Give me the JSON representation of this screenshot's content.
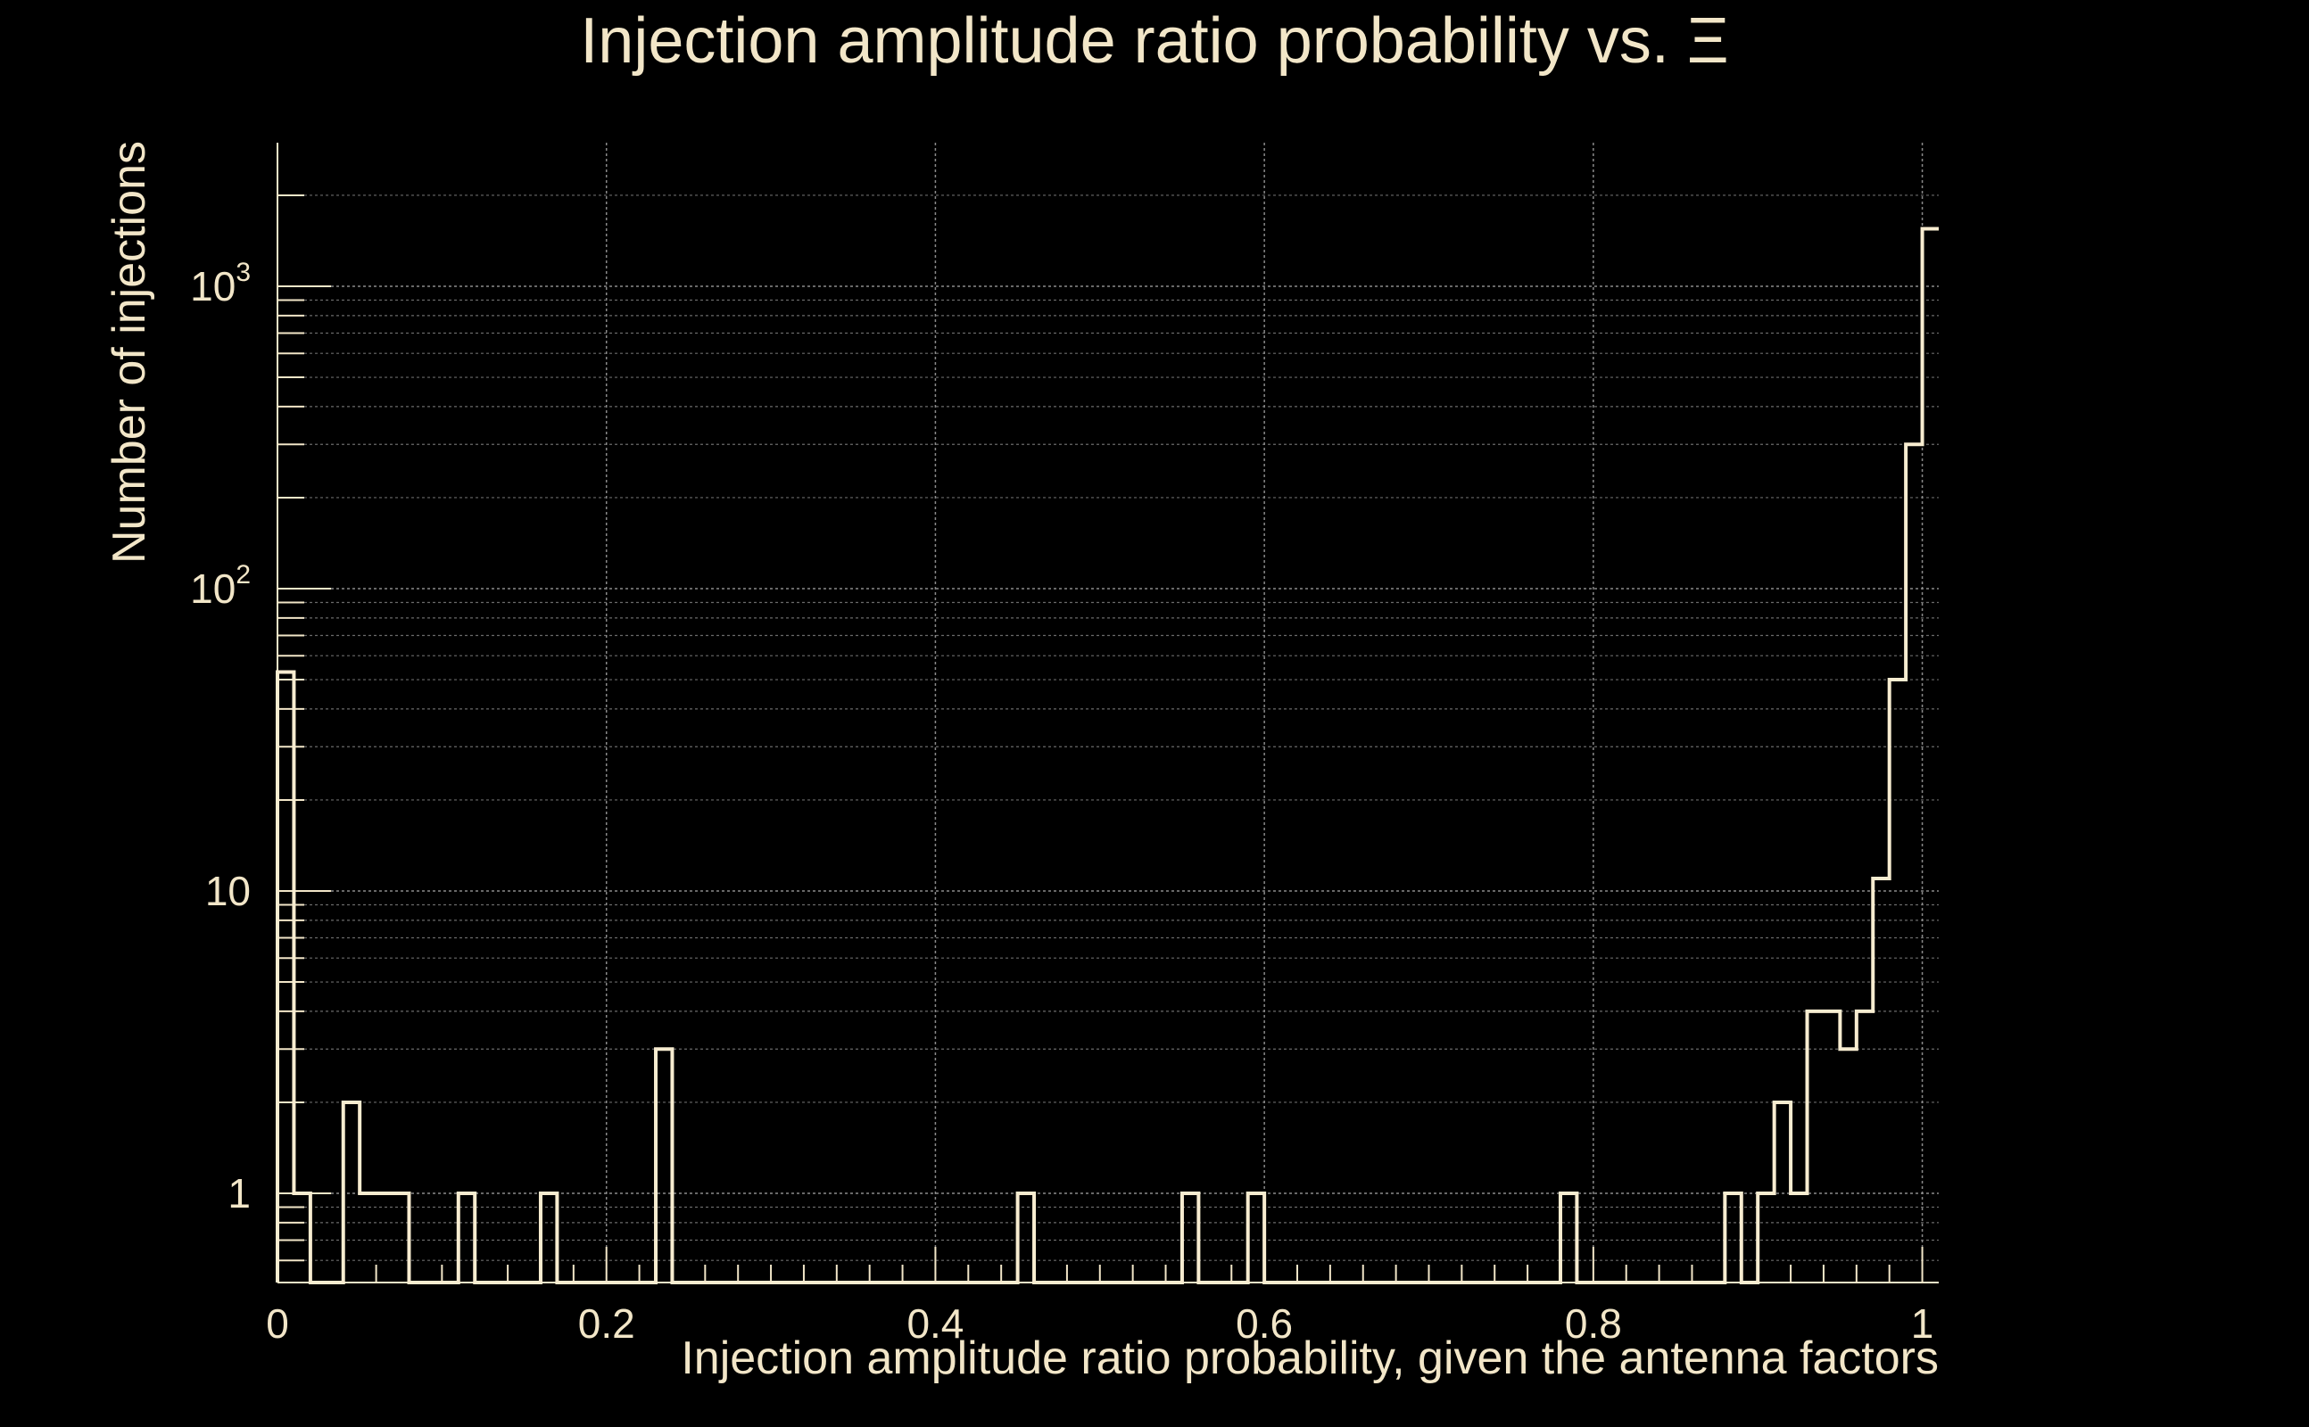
{
  "chart_data": {
    "type": "histogram",
    "title": "Injection amplitude ratio probability vs.  Ξ",
    "xlabel": "Injection amplitude ratio probability, given the antenna factors",
    "ylabel": "Number of injections",
    "xlim": [
      0,
      1.01
    ],
    "ylim": [
      0.5,
      3000
    ],
    "yscale": "log",
    "grid": true,
    "x_ticks": [
      "0",
      "0.2",
      "0.4",
      "0.6",
      "0.8",
      "1"
    ],
    "y_ticks": [
      {
        "base": "1",
        "sup": ""
      },
      {
        "base": "10",
        "sup": ""
      },
      {
        "base": "10",
        "sup": "2"
      },
      {
        "base": "10",
        "sup": "3"
      }
    ],
    "bin_width": 0.01,
    "bins": [
      {
        "x0": 0.0,
        "count": 53
      },
      {
        "x0": 0.01,
        "count": 1
      },
      {
        "x0": 0.04,
        "count": 2
      },
      {
        "x0": 0.05,
        "count": 1
      },
      {
        "x0": 0.06,
        "count": 1
      },
      {
        "x0": 0.07,
        "count": 1
      },
      {
        "x0": 0.11,
        "count": 1
      },
      {
        "x0": 0.16,
        "count": 1
      },
      {
        "x0": 0.23,
        "count": 3
      },
      {
        "x0": 0.45,
        "count": 1
      },
      {
        "x0": 0.55,
        "count": 1
      },
      {
        "x0": 0.59,
        "count": 1
      },
      {
        "x0": 0.78,
        "count": 1
      },
      {
        "x0": 0.88,
        "count": 1
      },
      {
        "x0": 0.9,
        "count": 1
      },
      {
        "x0": 0.91,
        "count": 2
      },
      {
        "x0": 0.92,
        "count": 1
      },
      {
        "x0": 0.93,
        "count": 4
      },
      {
        "x0": 0.94,
        "count": 4
      },
      {
        "x0": 0.95,
        "count": 3
      },
      {
        "x0": 0.96,
        "count": 4
      },
      {
        "x0": 0.97,
        "count": 11
      },
      {
        "x0": 0.98,
        "count": 50
      },
      {
        "x0": 0.99,
        "count": 300
      },
      {
        "x0": 1.0,
        "count": 1550
      }
    ]
  }
}
